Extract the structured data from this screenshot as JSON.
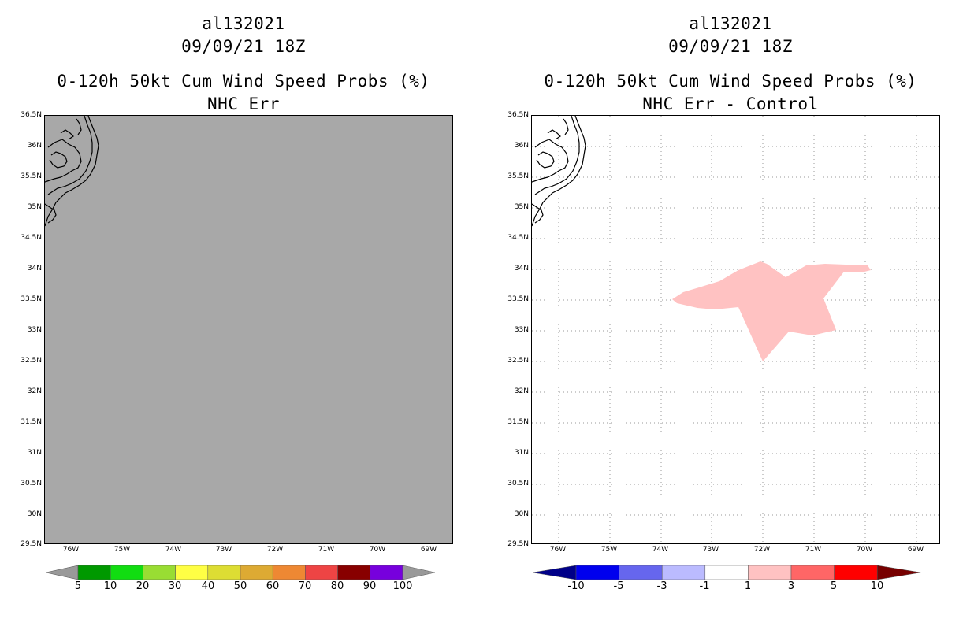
{
  "left": {
    "title": [
      "al132021",
      "09/09/21 18Z",
      "0-120h 50kt Cum Wind Speed Probs (%)",
      "NHC Err"
    ],
    "colorbar": {
      "colors": [
        "#999999",
        "#009900",
        "#11dd11",
        "#99dd33",
        "#ffff44",
        "#dddd33",
        "#ddaa33",
        "#ee8833",
        "#ee4444",
        "#880000",
        "#7700dd",
        "#999999"
      ],
      "labels": [
        "5",
        "10",
        "20",
        "30",
        "40",
        "50",
        "60",
        "70",
        "80",
        "90",
        "100"
      ]
    }
  },
  "right": {
    "title": [
      "al132021",
      "09/09/21 18Z",
      "0-120h 50kt Cum Wind Speed Probs (%)",
      "NHC Err - Control"
    ],
    "colorbar": {
      "colors": [
        "#000088",
        "#0000ee",
        "#6666ee",
        "#bbbbff",
        "#ffffff",
        "#ffc2c2",
        "#ff6666",
        "#ff0000",
        "#770000"
      ],
      "labels": [
        "-10",
        "-5",
        "-3",
        "-1",
        "1",
        "3",
        "5",
        "10"
      ]
    }
  },
  "axes": {
    "lat_labels": [
      "36.5N",
      "36N",
      "35.5N",
      "35N",
      "34.5N",
      "34N",
      "33.5N",
      "33N",
      "32.5N",
      "32N",
      "31.5N",
      "31N",
      "30.5N",
      "30N",
      "29.5N"
    ],
    "lon_labels": [
      "76W",
      "75W",
      "74W",
      "73W",
      "72W",
      "71W",
      "70W",
      "69W"
    ]
  },
  "colors": {
    "background": "#ffffff",
    "land_gray": "#a8a8a8",
    "prob_diff_fill": "#ffc2c2",
    "grid": "#999999"
  }
}
